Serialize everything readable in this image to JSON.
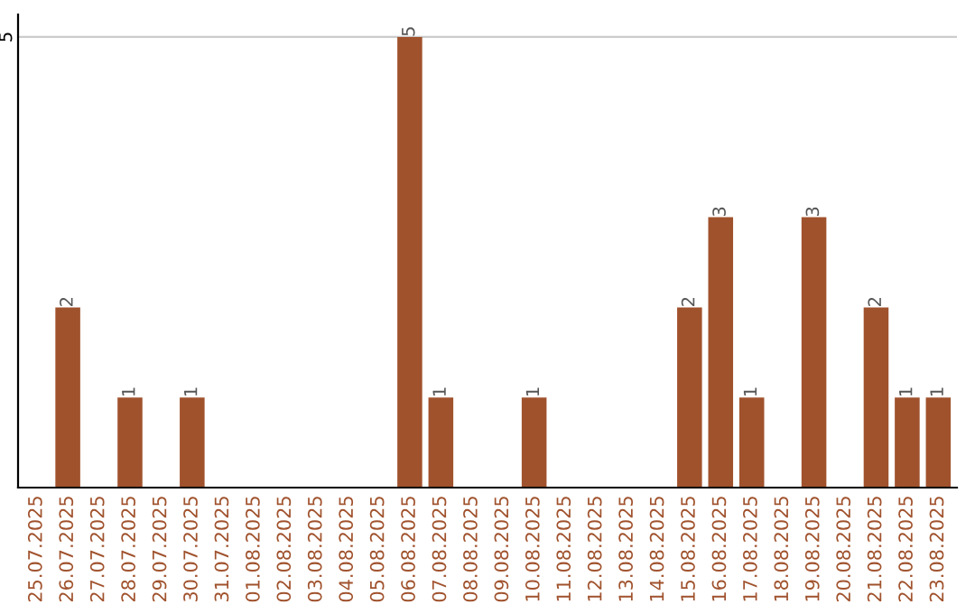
{
  "chart_data": {
    "type": "bar",
    "categories": [
      "25.07.2025",
      "26.07.2025",
      "27.07.2025",
      "28.07.2025",
      "29.07.2025",
      "30.07.2025",
      "31.07.2025",
      "01.08.2025",
      "02.08.2025",
      "03.08.2025",
      "04.08.2025",
      "05.08.2025",
      "06.08.2025",
      "07.08.2025",
      "08.08.2025",
      "09.08.2025",
      "10.08.2025",
      "11.08.2025",
      "12.08.2025",
      "13.08.2025",
      "14.08.2025",
      "15.08.2025",
      "16.08.2025",
      "17.08.2025",
      "18.08.2025",
      "19.08.2025",
      "20.08.2025",
      "21.08.2025",
      "22.08.2025",
      "23.08.2025"
    ],
    "values": [
      0,
      2,
      0,
      1,
      0,
      1,
      0,
      0,
      0,
      0,
      0,
      0,
      5,
      1,
      0,
      0,
      1,
      0,
      0,
      0,
      0,
      2,
      3,
      1,
      0,
      3,
      0,
      2,
      1,
      1
    ],
    "value_labels": [
      null,
      "2",
      null,
      "1",
      null,
      "1",
      null,
      null,
      null,
      null,
      null,
      null,
      "5",
      "1",
      null,
      null,
      "1",
      null,
      null,
      null,
      null,
      "2",
      "3",
      "1",
      null,
      "3",
      null,
      "2",
      "1",
      "1"
    ],
    "color": "#a0522d",
    "ylim": [
      0,
      5.25
    ],
    "yticks": [
      5
    ],
    "grid": "y"
  }
}
